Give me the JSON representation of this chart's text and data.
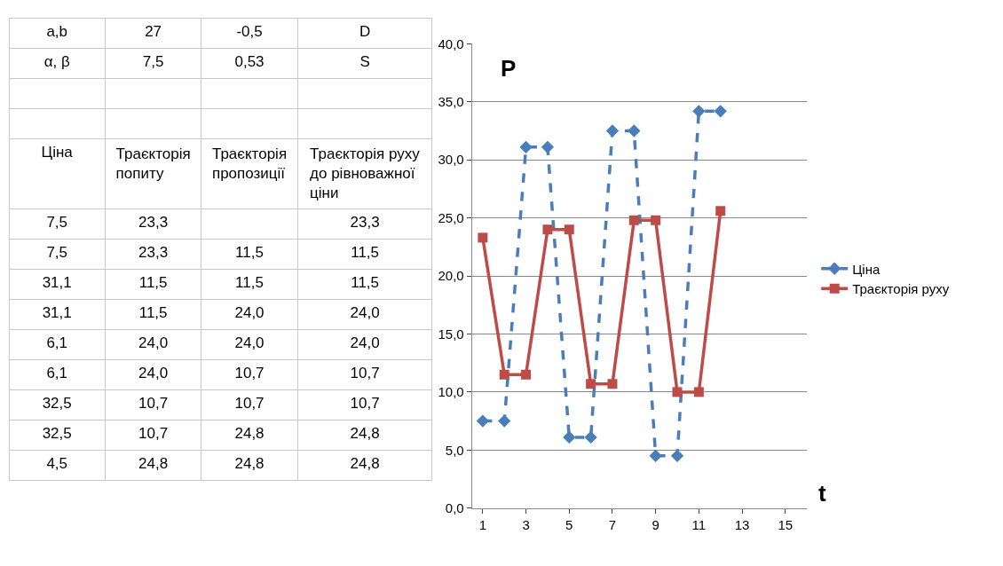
{
  "chart_data": [
    {
      "type": "other",
      "cells": [
        [
          "a,b",
          "27",
          "-0,5",
          "D"
        ],
        [
          "α, β",
          "7,5",
          "0,53",
          "S"
        ],
        [
          null,
          null,
          null,
          null
        ],
        [
          null,
          null,
          null,
          null
        ],
        [
          "Ціна",
          "Траєкторія попиту",
          "Траєкторія пропозиції",
          "Траєкторія руху до рівноважної ціни"
        ],
        [
          "7,5",
          "23,3",
          null,
          "23,3"
        ],
        [
          "7,5",
          "23,3",
          "11,5",
          "11,5"
        ],
        [
          "31,1",
          "11,5",
          "11,5",
          "11,5"
        ],
        [
          "31,1",
          "11,5",
          "24,0",
          "24,0"
        ],
        [
          "6,1",
          "24,0",
          "24,0",
          "24,0"
        ],
        [
          "6,1",
          "24,0",
          "10,7",
          "10,7"
        ],
        [
          "32,5",
          "10,7",
          "10,7",
          "10,7"
        ],
        [
          "32,5",
          "10,7",
          "24,8",
          "24,8"
        ],
        [
          "4,5",
          "24,8",
          "24,8",
          "24,8"
        ]
      ]
    },
    {
      "type": "line",
      "xlabel": "t",
      "ylabel": "P",
      "x": [
        1,
        2,
        3,
        4,
        5,
        6,
        7,
        8,
        9,
        10,
        11,
        12
      ],
      "series": [
        {
          "name": "Ціна",
          "color": "#4a7ebb",
          "line_style": "dashed",
          "marker": "diamond",
          "values": [
            7.5,
            7.5,
            31.1,
            31.1,
            6.1,
            6.1,
            32.5,
            32.5,
            4.5,
            4.5,
            34.2,
            34.2
          ]
        },
        {
          "name": "Траєкторія руху",
          "color": "#be4b48",
          "line_style": "solid",
          "marker": "square",
          "values": [
            23.3,
            11.5,
            11.5,
            24.0,
            24.0,
            10.7,
            10.7,
            24.8,
            24.8,
            10.0,
            10.0,
            25.6
          ]
        }
      ],
      "xlim": [
        0.5,
        16
      ],
      "xticks": [
        1,
        3,
        5,
        7,
        9,
        11,
        13,
        15
      ],
      "ylim": [
        0,
        40
      ],
      "yticks": [
        {
          "value": 0,
          "label": "0,0"
        },
        {
          "value": 5,
          "label": "5,0"
        },
        {
          "value": 10,
          "label": "10,0"
        },
        {
          "value": 15,
          "label": "15,0"
        },
        {
          "value": 20,
          "label": "20,0"
        },
        {
          "value": 25,
          "label": "25,0"
        },
        {
          "value": 30,
          "label": "30,0"
        },
        {
          "value": 35,
          "label": "35,0"
        },
        {
          "value": 40,
          "label": "40,0"
        }
      ],
      "grid": "y",
      "legend": "right"
    }
  ]
}
